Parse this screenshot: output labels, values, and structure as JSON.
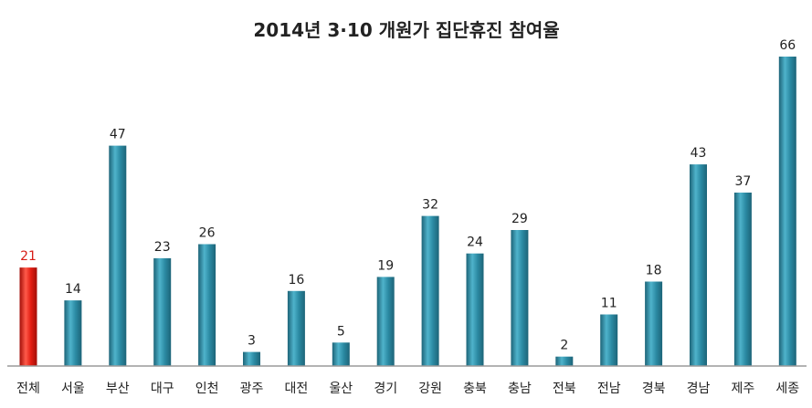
{
  "chart_data": {
    "type": "bar",
    "title": "2014년 3·10 개원가 집단휴진 참여율",
    "categories": [
      "전체",
      "서울",
      "부산",
      "대구",
      "인천",
      "광주",
      "대전",
      "울산",
      "경기",
      "강원",
      "충북",
      "충남",
      "전북",
      "전남",
      "경북",
      "경남",
      "제주",
      "세종"
    ],
    "values": [
      21,
      14,
      47,
      23,
      26,
      3,
      16,
      5,
      19,
      32,
      24,
      29,
      2,
      11,
      18,
      43,
      37,
      66
    ],
    "highlight_index": 0,
    "ylim": [
      0,
      66
    ],
    "grid": false,
    "legend": "none",
    "colors": {
      "bar": "#2b8aa3",
      "bar_light": "#4fb3cb",
      "bar_dark": "#1d6478",
      "highlight": "#e21d12",
      "highlight_light": "#ff5a4a",
      "highlight_dark": "#a20f08",
      "axis": "#9a9a9a"
    }
  }
}
